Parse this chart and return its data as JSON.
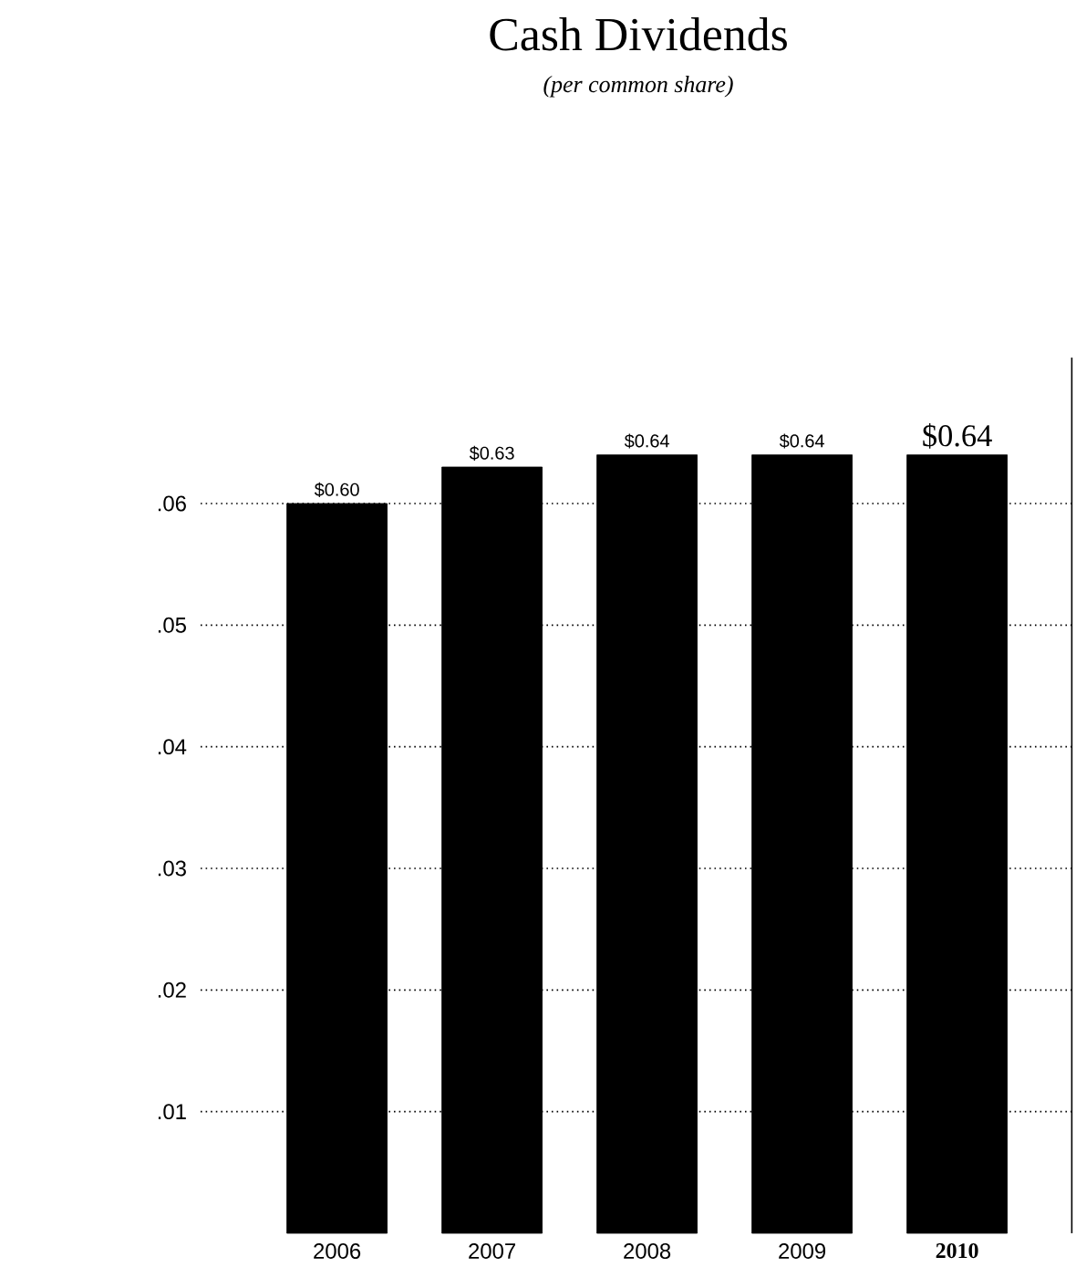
{
  "chart_data": {
    "type": "bar",
    "title": "Cash Dividends",
    "subtitle": "(per common share)",
    "categories": [
      "2006",
      "2007",
      "2008",
      "2009",
      "2010"
    ],
    "values": [
      0.06,
      0.063,
      0.064,
      0.064,
      0.064
    ],
    "color": "#000000",
    "ylim": [
      0,
      0.072
    ],
    "yticks": [
      {
        "value": 0.01,
        "label": ".01"
      },
      {
        "value": 0.02,
        "label": ".02"
      },
      {
        "value": 0.03,
        "label": ".03"
      },
      {
        "value": 0.04,
        "label": ".04"
      },
      {
        "value": 0.05,
        "label": ".05"
      },
      {
        "value": 0.06,
        "label": ".06"
      }
    ],
    "grid": "y",
    "line_style": "dotted",
    "annotations": [
      {
        "text": "$0.60",
        "x": "2006",
        "y": 0.06
      },
      {
        "text": "$0.63",
        "x": "2007",
        "y": 0.063
      },
      {
        "text": "$0.64",
        "x": "2008",
        "y": 0.064
      },
      {
        "text": "$0.64",
        "x": "2009",
        "y": 0.064
      },
      {
        "text": "$0.64",
        "x": "2010",
        "y": 0.064
      }
    ]
  }
}
